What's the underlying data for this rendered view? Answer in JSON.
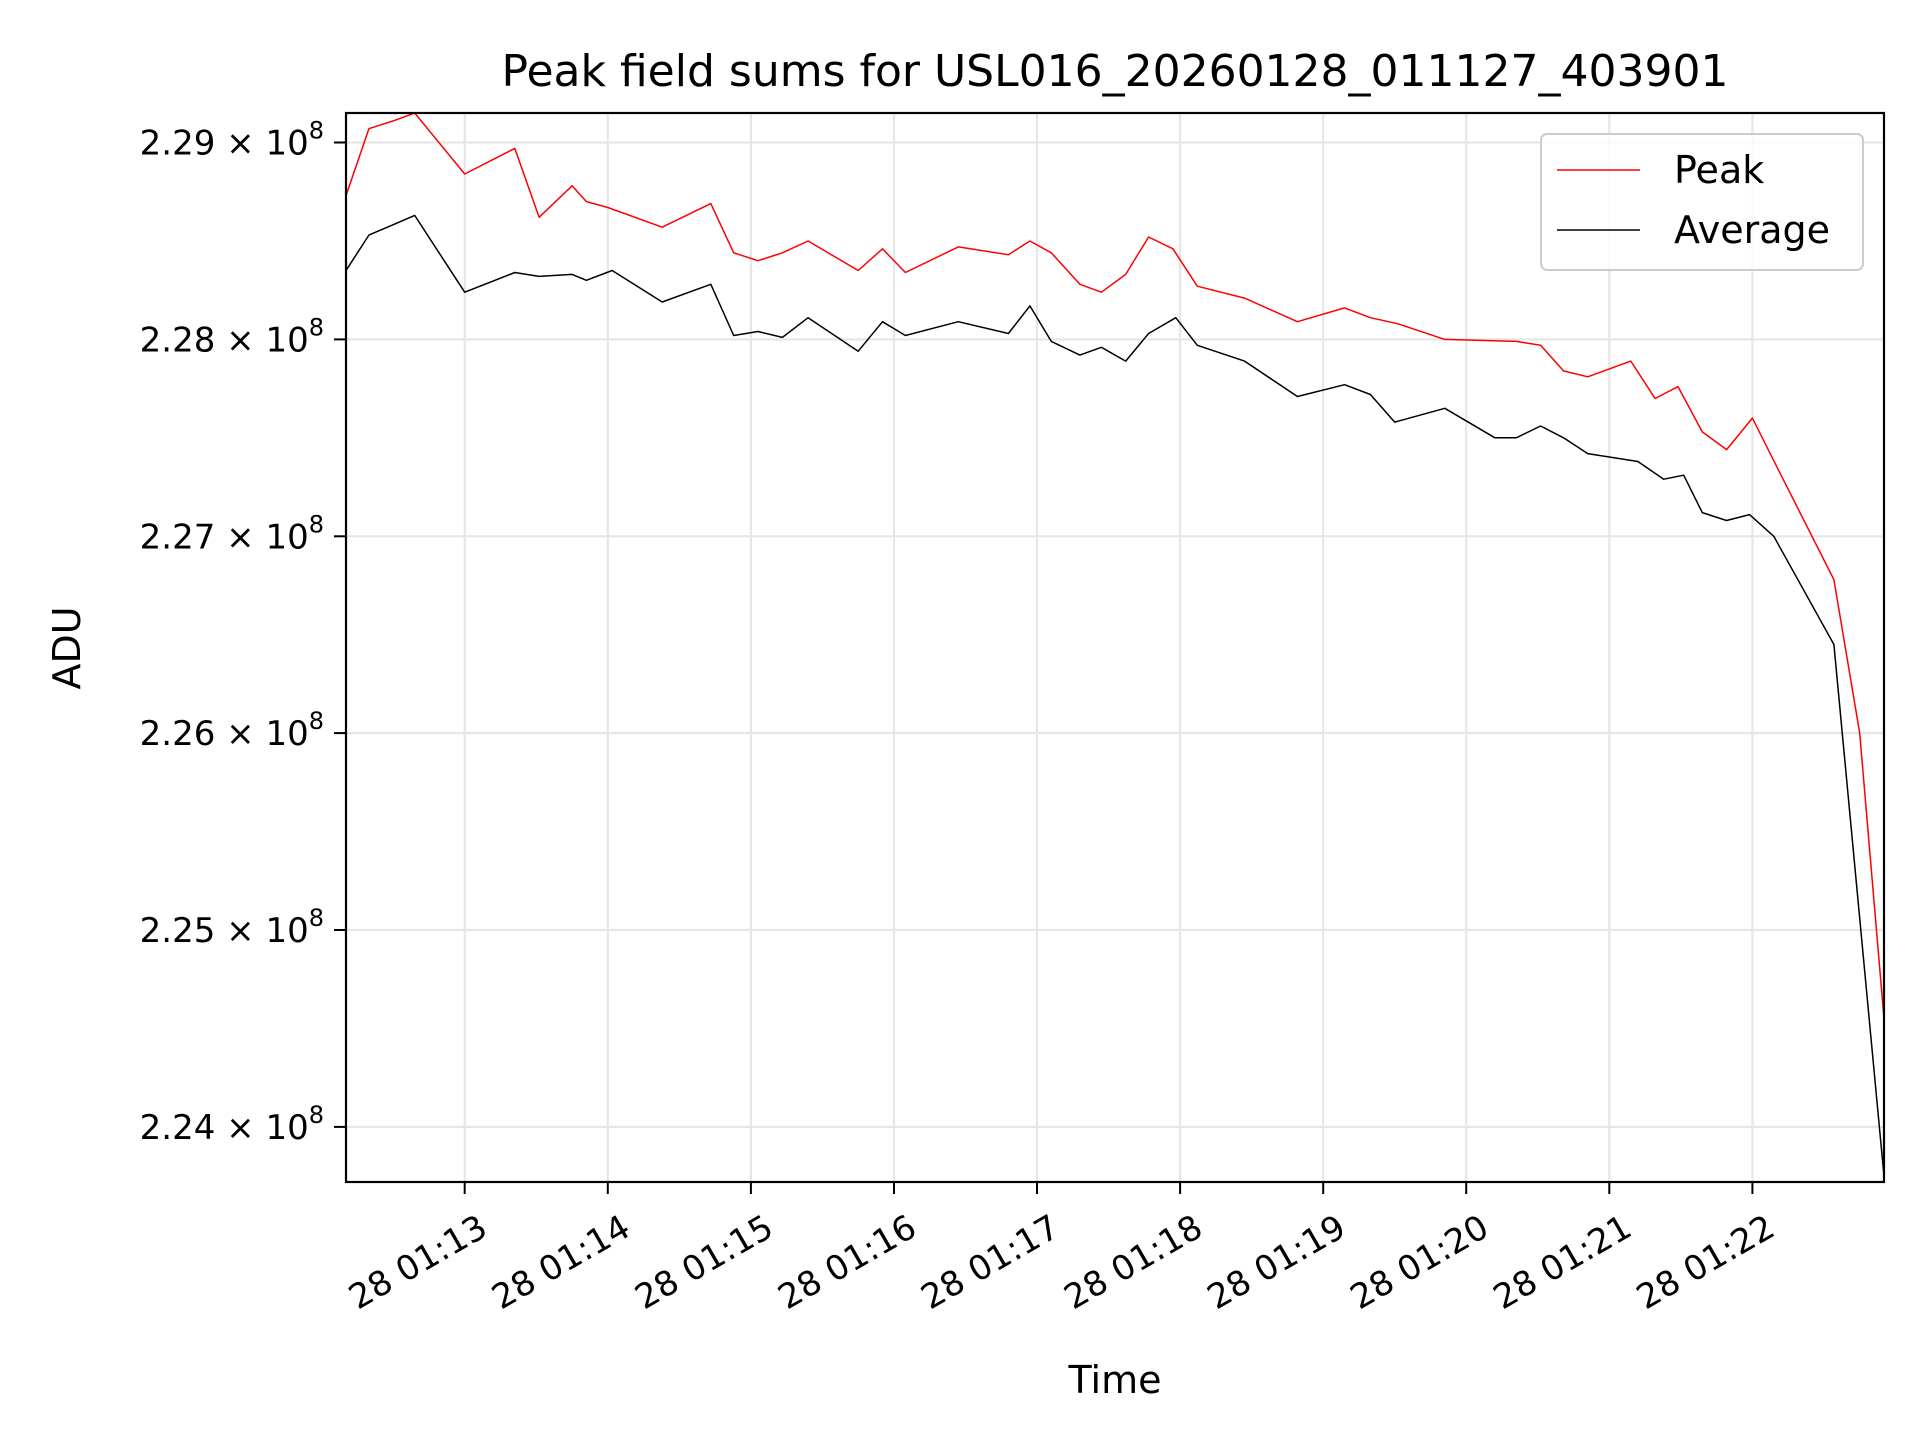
{
  "chart_data": {
    "type": "line",
    "title": "Peak field sums for USL016_20260128_011127_403901",
    "xlabel": "Time",
    "ylabel": "ADU",
    "x_unit": "minutes",
    "x_range": [
      12.17,
      22.92
    ],
    "ylim": [
      223720000.0,
      229150000.0
    ],
    "x_ticks": [
      {
        "value": 13,
        "label": "28 01:13"
      },
      {
        "value": 14,
        "label": "28 01:14"
      },
      {
        "value": 15,
        "label": "28 01:15"
      },
      {
        "value": 16,
        "label": "28 01:16"
      },
      {
        "value": 17,
        "label": "28 01:17"
      },
      {
        "value": 18,
        "label": "28 01:18"
      },
      {
        "value": 19,
        "label": "28 01:19"
      },
      {
        "value": 20,
        "label": "28 01:20"
      },
      {
        "value": 21,
        "label": "28 01:21"
      },
      {
        "value": 22,
        "label": "28 01:22"
      }
    ],
    "y_ticks": [
      {
        "value": 224000000.0,
        "label": "2.24 × 10",
        "exp": "8"
      },
      {
        "value": 225000000.0,
        "label": "2.25 × 10",
        "exp": "8"
      },
      {
        "value": 226000000.0,
        "label": "2.26 × 10",
        "exp": "8"
      },
      {
        "value": 227000000.0,
        "label": "2.27 × 10",
        "exp": "8"
      },
      {
        "value": 228000000.0,
        "label": "2.28 × 10",
        "exp": "8"
      },
      {
        "value": 229000000.0,
        "label": "2.29 × 10",
        "exp": "8"
      }
    ],
    "grid": true,
    "legend_position": "top-right",
    "series": [
      {
        "name": "Peak",
        "color": "#ff0000",
        "points": [
          [
            12.17,
            228730000.0
          ],
          [
            12.33,
            229070000.0
          ],
          [
            12.5,
            229110000.0
          ],
          [
            12.65,
            229150000.0
          ],
          [
            13.0,
            228840000.0
          ],
          [
            13.35,
            228970000.0
          ],
          [
            13.52,
            228620000.0
          ],
          [
            13.75,
            228780000.0
          ],
          [
            13.85,
            228700000.0
          ],
          [
            14.0,
            228670000.0
          ],
          [
            14.38,
            228570000.0
          ],
          [
            14.72,
            228690000.0
          ],
          [
            14.88,
            228440000.0
          ],
          [
            15.05,
            228400000.0
          ],
          [
            15.22,
            228440000.0
          ],
          [
            15.4,
            228500000.0
          ],
          [
            15.75,
            228350000.0
          ],
          [
            15.92,
            228460000.0
          ],
          [
            16.08,
            228340000.0
          ],
          [
            16.45,
            228470000.0
          ],
          [
            16.8,
            228430000.0
          ],
          [
            16.95,
            228500000.0
          ],
          [
            17.1,
            228440000.0
          ],
          [
            17.3,
            228280000.0
          ],
          [
            17.45,
            228240000.0
          ],
          [
            17.62,
            228330000.0
          ],
          [
            17.78,
            228520000.0
          ],
          [
            17.95,
            228460000.0
          ],
          [
            18.12,
            228270000.0
          ],
          [
            18.45,
            228210000.0
          ],
          [
            18.82,
            228090000.0
          ],
          [
            19.15,
            228160000.0
          ],
          [
            19.33,
            228110000.0
          ],
          [
            19.52,
            228080000.0
          ],
          [
            19.85,
            228000000.0
          ],
          [
            20.35,
            227990000.0
          ],
          [
            20.52,
            227970000.0
          ],
          [
            20.68,
            227840000.0
          ],
          [
            20.85,
            227810000.0
          ],
          [
            21.15,
            227890000.0
          ],
          [
            21.32,
            227700000.0
          ],
          [
            21.48,
            227760000.0
          ],
          [
            21.65,
            227530000.0
          ],
          [
            21.82,
            227440000.0
          ],
          [
            22.0,
            227600000.0
          ],
          [
            22.18,
            227340000.0
          ],
          [
            22.57,
            226780000.0
          ],
          [
            22.75,
            226000000.0
          ],
          [
            22.92,
            224550000.0
          ]
        ]
      },
      {
        "name": "Average",
        "color": "#000000",
        "points": [
          [
            12.17,
            228350000.0
          ],
          [
            12.33,
            228530000.0
          ],
          [
            12.65,
            228630000.0
          ],
          [
            13.0,
            228240000.0
          ],
          [
            13.35,
            228340000.0
          ],
          [
            13.52,
            228320000.0
          ],
          [
            13.75,
            228330000.0
          ],
          [
            13.85,
            228300000.0
          ],
          [
            14.03,
            228350000.0
          ],
          [
            14.38,
            228190000.0
          ],
          [
            14.72,
            228280000.0
          ],
          [
            14.88,
            228020000.0
          ],
          [
            15.05,
            228040000.0
          ],
          [
            15.22,
            228010000.0
          ],
          [
            15.4,
            228110000.0
          ],
          [
            15.75,
            227940000.0
          ],
          [
            15.92,
            228090000.0
          ],
          [
            16.08,
            228020000.0
          ],
          [
            16.45,
            228090000.0
          ],
          [
            16.8,
            228030000.0
          ],
          [
            16.95,
            228170000.0
          ],
          [
            17.1,
            227990000.0
          ],
          [
            17.3,
            227920000.0
          ],
          [
            17.45,
            227960000.0
          ],
          [
            17.62,
            227890000.0
          ],
          [
            17.78,
            228030000.0
          ],
          [
            17.97,
            228110000.0
          ],
          [
            18.12,
            227970000.0
          ],
          [
            18.45,
            227890000.0
          ],
          [
            18.82,
            227710000.0
          ],
          [
            19.15,
            227770000.0
          ],
          [
            19.33,
            227720000.0
          ],
          [
            19.5,
            227580000.0
          ],
          [
            19.85,
            227650000.0
          ],
          [
            20.2,
            227500000.0
          ],
          [
            20.35,
            227500000.0
          ],
          [
            20.52,
            227560000.0
          ],
          [
            20.68,
            227500000.0
          ],
          [
            20.85,
            227420000.0
          ],
          [
            21.2,
            227380000.0
          ],
          [
            21.38,
            227290000.0
          ],
          [
            21.52,
            227310000.0
          ],
          [
            21.65,
            227120000.0
          ],
          [
            21.82,
            227080000.0
          ],
          [
            21.98,
            227110000.0
          ],
          [
            22.15,
            227000000.0
          ],
          [
            22.57,
            226450000.0
          ],
          [
            22.92,
            223750000.0
          ]
        ]
      }
    ]
  }
}
